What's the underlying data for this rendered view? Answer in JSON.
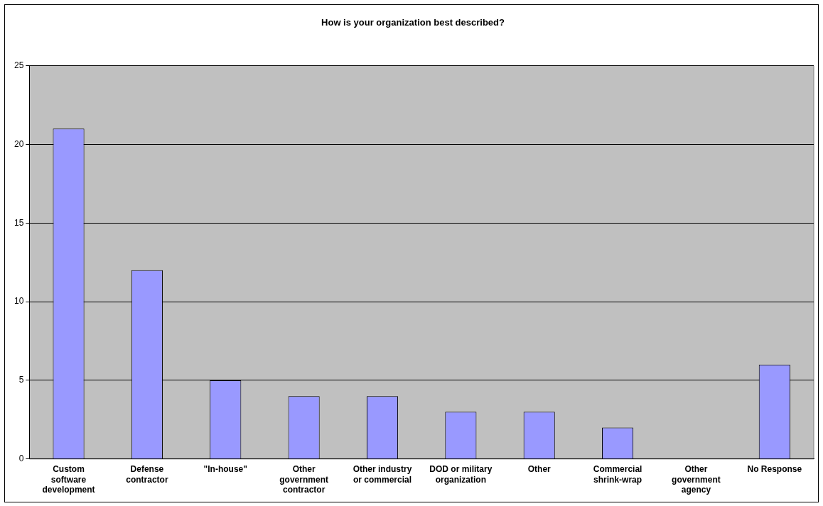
{
  "chart_data": {
    "type": "bar",
    "title": "How is your organization best described?",
    "categories": [
      "Custom software development",
      "Defense contractor",
      "\"In-house\"",
      "Other government contractor",
      "Other industry or commercial",
      "DOD or military organization",
      "Other",
      "Commercial shrink-wrap",
      "Other government agency",
      "No Response"
    ],
    "values": [
      21,
      12,
      5,
      4,
      4,
      3,
      3,
      2,
      0,
      6
    ],
    "color": "#9999ff",
    "ylim": [
      0,
      25
    ],
    "yticks": [
      0,
      5,
      10,
      15,
      20,
      25
    ],
    "grid": "y",
    "legend": false
  }
}
